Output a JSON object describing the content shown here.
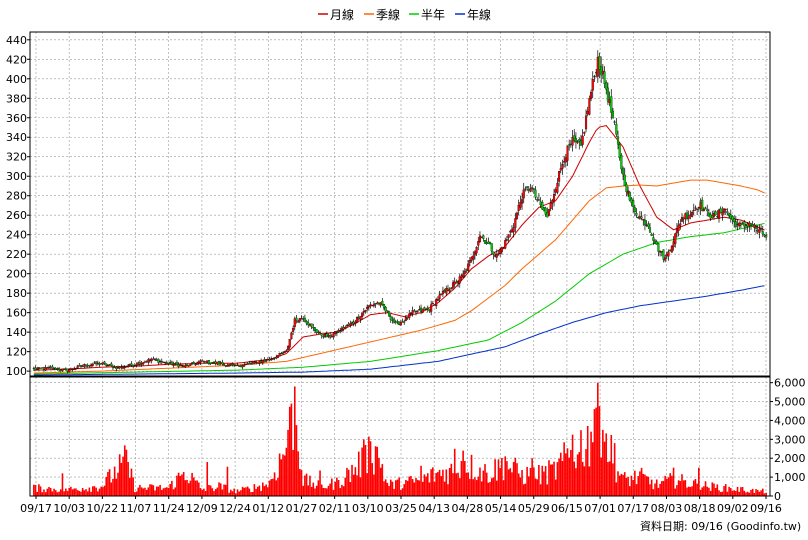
{
  "chart_data": {
    "type": "candlestick",
    "legend": [
      {
        "label": "月線",
        "color": "#cc0000"
      },
      {
        "label": "季線",
        "color": "#ff6600"
      },
      {
        "label": "半年",
        "color": "#00cc00"
      },
      {
        "label": "年線",
        "color": "#0033cc"
      }
    ],
    "price_axis": {
      "ylim": [
        95,
        448
      ],
      "ticks": [
        100,
        120,
        140,
        160,
        180,
        200,
        220,
        240,
        260,
        280,
        300,
        320,
        340,
        360,
        380,
        400,
        420,
        440
      ]
    },
    "volume_axis": {
      "ylim": [
        0,
        6300
      ],
      "ticks": [
        0,
        1000,
        2000,
        3000,
        4000,
        5000,
        6000
      ],
      "tick_labels": [
        "0",
        "1,000",
        "2,000",
        "3,000",
        "4,000",
        "5,000",
        "6,000"
      ]
    },
    "x_labels": [
      "09/17",
      "10/03",
      "10/22",
      "11/07",
      "11/24",
      "12/09",
      "12/24",
      "01/12",
      "01/27",
      "02/11",
      "03/10",
      "03/25",
      "04/13",
      "04/28",
      "05/14",
      "05/29",
      "06/15",
      "07/01",
      "07/17",
      "08/03",
      "08/18",
      "09/02",
      "09/16"
    ],
    "source_text": "資料日期: 09/16 (Goodinfo.tw)",
    "close_anchors": [
      [
        0,
        102
      ],
      [
        10,
        103
      ],
      [
        20,
        101
      ],
      [
        30,
        106
      ],
      [
        40,
        108
      ],
      [
        50,
        103
      ],
      [
        60,
        107
      ],
      [
        70,
        112
      ],
      [
        80,
        108
      ],
      [
        90,
        105
      ],
      [
        100,
        110
      ],
      [
        110,
        108
      ],
      [
        120,
        105
      ],
      [
        130,
        108
      ],
      [
        140,
        112
      ],
      [
        150,
        120
      ],
      [
        155,
        152
      ],
      [
        160,
        155
      ],
      [
        165,
        145
      ],
      [
        170,
        138
      ],
      [
        175,
        135
      ],
      [
        180,
        140
      ],
      [
        185,
        145
      ],
      [
        190,
        150
      ],
      [
        195,
        160
      ],
      [
        200,
        168
      ],
      [
        205,
        170
      ],
      [
        210,
        160
      ],
      [
        215,
        148
      ],
      [
        220,
        152
      ],
      [
        225,
        160
      ],
      [
        230,
        162
      ],
      [
        235,
        164
      ],
      [
        240,
        175
      ],
      [
        245,
        183
      ],
      [
        250,
        190
      ],
      [
        255,
        198
      ],
      [
        260,
        215
      ],
      [
        265,
        240
      ],
      [
        270,
        230
      ],
      [
        275,
        218
      ],
      [
        280,
        232
      ],
      [
        285,
        250
      ],
      [
        290,
        280
      ],
      [
        295,
        290
      ],
      [
        300,
        272
      ],
      [
        305,
        258
      ],
      [
        310,
        290
      ],
      [
        315,
        320
      ],
      [
        320,
        335
      ],
      [
        325,
        330
      ],
      [
        330,
        378
      ],
      [
        335,
        420
      ],
      [
        340,
        390
      ],
      [
        345,
        350
      ],
      [
        350,
        300
      ],
      [
        355,
        270
      ],
      [
        360,
        258
      ],
      [
        365,
        250
      ],
      [
        370,
        228
      ],
      [
        375,
        215
      ],
      [
        380,
        235
      ],
      [
        385,
        258
      ],
      [
        390,
        262
      ],
      [
        395,
        272
      ],
      [
        400,
        262
      ],
      [
        405,
        258
      ],
      [
        410,
        268
      ],
      [
        415,
        254
      ],
      [
        420,
        248
      ],
      [
        425,
        252
      ],
      [
        430,
        245
      ],
      [
        435,
        238
      ]
    ],
    "ma_month": [
      [
        0,
        101
      ],
      [
        20,
        102
      ],
      [
        40,
        104
      ],
      [
        60,
        105
      ],
      [
        80,
        107
      ],
      [
        100,
        108
      ],
      [
        120,
        108
      ],
      [
        140,
        112
      ],
      [
        150,
        118
      ],
      [
        160,
        135
      ],
      [
        170,
        138
      ],
      [
        180,
        140
      ],
      [
        190,
        148
      ],
      [
        200,
        158
      ],
      [
        210,
        160
      ],
      [
        220,
        156
      ],
      [
        230,
        160
      ],
      [
        240,
        170
      ],
      [
        250,
        185
      ],
      [
        260,
        205
      ],
      [
        270,
        218
      ],
      [
        280,
        228
      ],
      [
        290,
        250
      ],
      [
        300,
        268
      ],
      [
        310,
        275
      ],
      [
        320,
        300
      ],
      [
        330,
        335
      ],
      [
        335,
        350
      ],
      [
        340,
        352
      ],
      [
        350,
        330
      ],
      [
        360,
        290
      ],
      [
        370,
        258
      ],
      [
        380,
        245
      ],
      [
        390,
        252
      ],
      [
        400,
        255
      ],
      [
        410,
        258
      ],
      [
        420,
        255
      ],
      [
        430,
        248
      ],
      [
        435,
        244
      ]
    ],
    "ma_quarter": [
      [
        0,
        98
      ],
      [
        40,
        100
      ],
      [
        80,
        103
      ],
      [
        120,
        106
      ],
      [
        150,
        110
      ],
      [
        170,
        118
      ],
      [
        200,
        130
      ],
      [
        230,
        142
      ],
      [
        250,
        152
      ],
      [
        260,
        162
      ],
      [
        270,
        175
      ],
      [
        280,
        188
      ],
      [
        290,
        205
      ],
      [
        300,
        220
      ],
      [
        310,
        235
      ],
      [
        320,
        255
      ],
      [
        330,
        275
      ],
      [
        340,
        288
      ],
      [
        350,
        290
      ],
      [
        360,
        291
      ],
      [
        370,
        290
      ],
      [
        380,
        293
      ],
      [
        390,
        296
      ],
      [
        400,
        296
      ],
      [
        410,
        293
      ],
      [
        420,
        290
      ],
      [
        430,
        286
      ],
      [
        435,
        282
      ]
    ],
    "ma_half": [
      [
        0,
        97
      ],
      [
        60,
        99
      ],
      [
        120,
        101
      ],
      [
        160,
        104
      ],
      [
        200,
        110
      ],
      [
        240,
        121
      ],
      [
        270,
        132
      ],
      [
        290,
        150
      ],
      [
        310,
        172
      ],
      [
        330,
        200
      ],
      [
        350,
        220
      ],
      [
        370,
        232
      ],
      [
        390,
        238
      ],
      [
        410,
        242
      ],
      [
        430,
        250
      ],
      [
        435,
        252
      ]
    ],
    "ma_year": [
      [
        0,
        96
      ],
      [
        60,
        97
      ],
      [
        120,
        98
      ],
      [
        160,
        99
      ],
      [
        200,
        102
      ],
      [
        240,
        110
      ],
      [
        280,
        125
      ],
      [
        300,
        138
      ],
      [
        320,
        150
      ],
      [
        340,
        160
      ],
      [
        360,
        167
      ],
      [
        380,
        172
      ],
      [
        400,
        177
      ],
      [
        420,
        183
      ],
      [
        435,
        188
      ]
    ],
    "volume_anchors": [
      [
        0,
        500
      ],
      [
        20,
        400
      ],
      [
        40,
        600
      ],
      [
        55,
        2200
      ],
      [
        60,
        500
      ],
      [
        80,
        500
      ],
      [
        90,
        1500
      ],
      [
        100,
        400
      ],
      [
        110,
        600
      ],
      [
        120,
        300
      ],
      [
        130,
        500
      ],
      [
        140,
        800
      ],
      [
        150,
        3000
      ],
      [
        155,
        5700
      ],
      [
        160,
        1000
      ],
      [
        170,
        600
      ],
      [
        180,
        800
      ],
      [
        190,
        1600
      ],
      [
        200,
        2800
      ],
      [
        205,
        2500
      ],
      [
        210,
        700
      ],
      [
        220,
        800
      ],
      [
        230,
        1000
      ],
      [
        240,
        1400
      ],
      [
        250,
        1600
      ],
      [
        255,
        2200
      ],
      [
        260,
        1800
      ],
      [
        270,
        1400
      ],
      [
        280,
        2000
      ],
      [
        290,
        1300
      ],
      [
        300,
        1300
      ],
      [
        310,
        1600
      ],
      [
        320,
        2800
      ],
      [
        330,
        3500
      ],
      [
        335,
        5900
      ],
      [
        340,
        3500
      ],
      [
        345,
        2000
      ],
      [
        350,
        1000
      ],
      [
        360,
        1200
      ],
      [
        370,
        700
      ],
      [
        380,
        1000
      ],
      [
        390,
        800
      ],
      [
        400,
        600
      ],
      [
        410,
        500
      ],
      [
        420,
        400
      ],
      [
        430,
        300
      ],
      [
        435,
        300
      ]
    ],
    "volume_spikes": [
      [
        17,
        1200
      ],
      [
        55,
        2450
      ],
      [
        103,
        1800
      ],
      [
        115,
        1550
      ],
      [
        151,
        3500
      ],
      [
        155,
        5800
      ],
      [
        170,
        1350
      ],
      [
        197,
        2700
      ],
      [
        200,
        2900
      ],
      [
        204,
        2600
      ],
      [
        230,
        1600
      ],
      [
        250,
        2500
      ],
      [
        255,
        2400
      ],
      [
        280,
        2100
      ],
      [
        296,
        2000
      ],
      [
        320,
        3250
      ],
      [
        323,
        2200
      ],
      [
        333,
        4600
      ],
      [
        335,
        6000
      ],
      [
        338,
        3500
      ],
      [
        345,
        2800
      ],
      [
        380,
        1500
      ],
      [
        395,
        1500
      ]
    ]
  }
}
